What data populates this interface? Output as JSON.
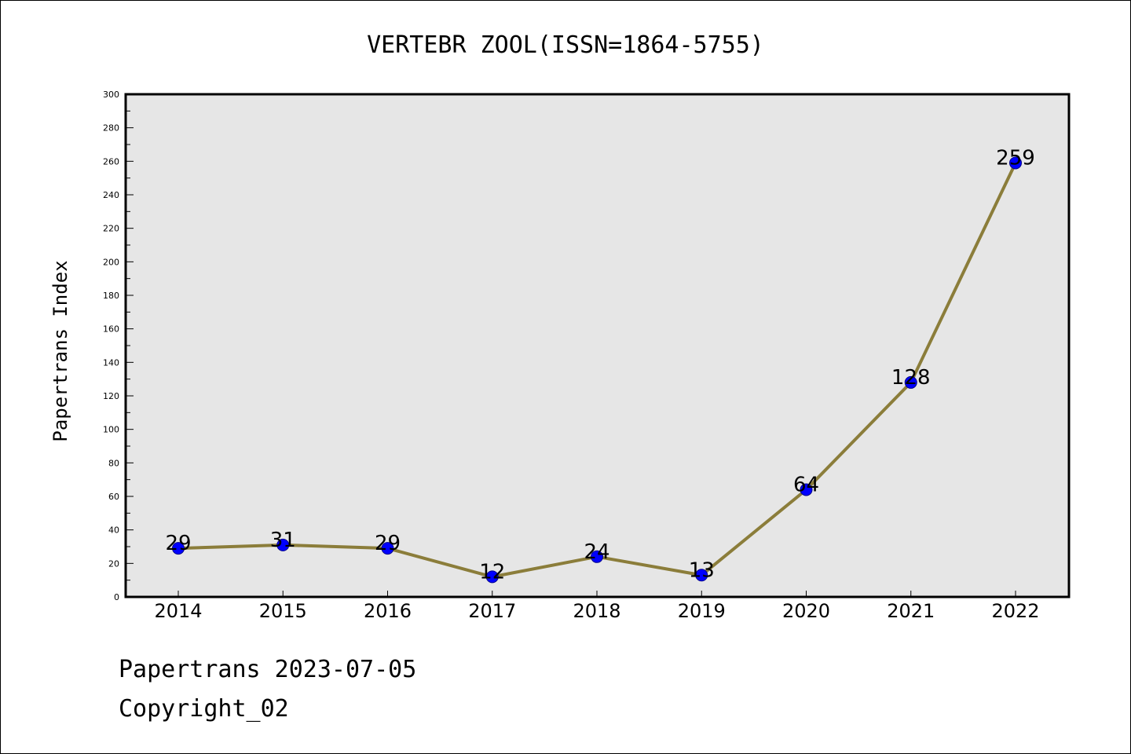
{
  "chart_data": {
    "type": "line",
    "title": "VERTEBR ZOOL(ISSN=1864-5755)",
    "xlabel": "",
    "ylabel": "Papertrans Index",
    "categories": [
      "2014",
      "2015",
      "2016",
      "2017",
      "2018",
      "2019",
      "2020",
      "2021",
      "2022"
    ],
    "series": [
      {
        "values": [
          29,
          31,
          29,
          12,
          24,
          13,
          64,
          128,
          259
        ]
      }
    ],
    "data_labels": [
      "29",
      "31",
      "29",
      "12",
      "24",
      "13",
      "64",
      "128",
      "259"
    ],
    "ylim": [
      0,
      300
    ],
    "yticks": [
      "0",
      "20",
      "40",
      "60",
      "80",
      "100",
      "120",
      "140",
      "160",
      "180",
      "200",
      "220",
      "240",
      "260",
      "280",
      "300"
    ],
    "grid": false,
    "legend": "none",
    "colors": {
      "line": "#8b7d3a",
      "marker_fill": "#0000ff",
      "marker_stroke": "#00008b",
      "plot_background": "#e6e6e6"
    }
  },
  "footer": {
    "date_line": "Papertrans 2023-07-05",
    "copyright_line": "Copyright_02"
  }
}
